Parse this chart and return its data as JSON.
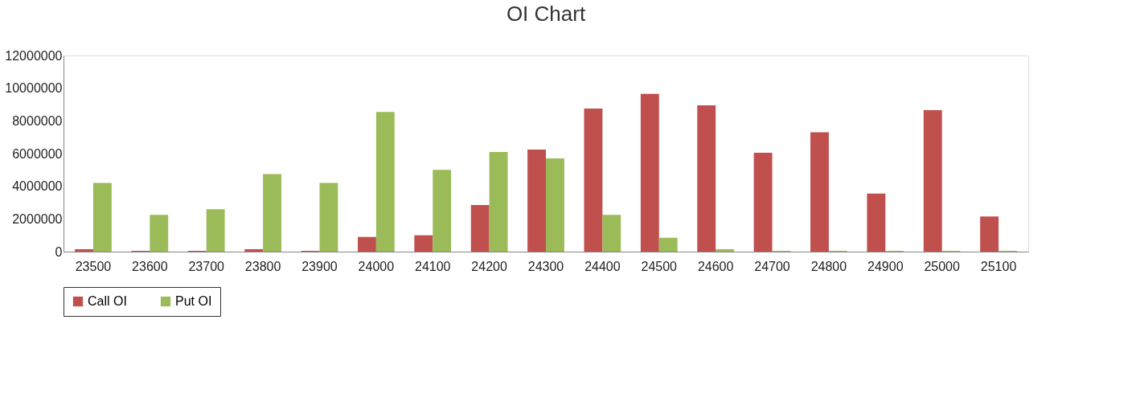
{
  "chart_data": {
    "type": "bar",
    "title": "OI Chart",
    "categories": [
      "23500",
      "23600",
      "23700",
      "23800",
      "23900",
      "24000",
      "24100",
      "24200",
      "24300",
      "24400",
      "24500",
      "24600",
      "24700",
      "24800",
      "24900",
      "25000",
      "25100"
    ],
    "series": [
      {
        "name": "Call OI",
        "color": "#c0504d",
        "values": [
          150000,
          50000,
          50000,
          150000,
          50000,
          900000,
          1000000,
          2850000,
          6250000,
          8750000,
          9650000,
          8950000,
          6050000,
          7300000,
          3550000,
          8650000,
          2150000
        ]
      },
      {
        "name": "Put OI",
        "color": "#9bbb59",
        "values": [
          4200000,
          2250000,
          2600000,
          4750000,
          4200000,
          8550000,
          5000000,
          6100000,
          5700000,
          2250000,
          850000,
          150000,
          50000,
          50000,
          50000,
          50000,
          50000
        ]
      }
    ],
    "ylim": [
      0,
      12000000
    ],
    "yticks": [
      0,
      2000000,
      4000000,
      6000000,
      8000000,
      10000000,
      12000000
    ],
    "grid": false,
    "legend": "bottom"
  }
}
